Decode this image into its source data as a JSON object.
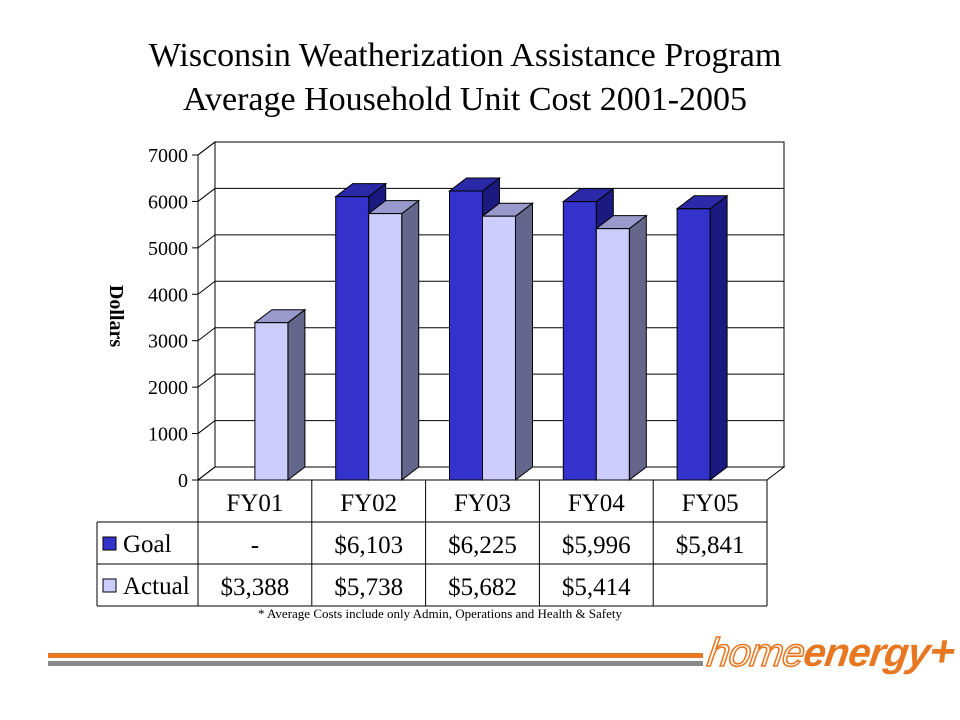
{
  "title_line1": "Wisconsin Weatherization Assistance Program",
  "title_line2": "Average Household Unit Cost 2001-2005",
  "footnote": "* Average Costs include only Admin, Operations and Health & Safety",
  "logo": {
    "word1": "home",
    "word2": "energy",
    "mark": "+"
  },
  "colors": {
    "goal_front": "#3333cc",
    "goal_side": "#1a1a80",
    "goal_top": "#2a2aa8",
    "actual_front": "#ccccff",
    "actual_side": "#66668c",
    "actual_top": "#9999cc",
    "orange": "#e87722",
    "gray": "#888888"
  },
  "chart_data": {
    "type": "bar",
    "categories": [
      "FY01",
      "FY02",
      "FY03",
      "FY04",
      "FY05"
    ],
    "series": [
      {
        "name": "Goal",
        "values": [
          null,
          6103,
          6225,
          5996,
          5841
        ],
        "labels": [
          "-",
          "$6,103",
          "$6,225",
          "$5,996",
          "$5,841"
        ]
      },
      {
        "name": "Actual",
        "values": [
          3388,
          5738,
          5682,
          5414,
          null
        ],
        "labels": [
          "$3,388",
          "$5,738",
          "$5,682",
          "$5,414",
          ""
        ]
      }
    ],
    "ylabel": "Dollars",
    "ylim": [
      0,
      7000
    ],
    "yticks": [
      "0",
      "1000",
      "2000",
      "3000",
      "4000",
      "5000",
      "6000",
      "7000"
    ],
    "grid": true,
    "legend": "data-table"
  }
}
